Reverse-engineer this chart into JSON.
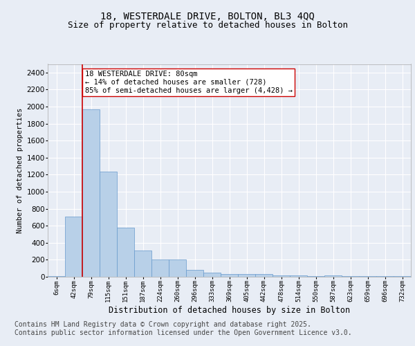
{
  "title_line1": "18, WESTERDALE DRIVE, BOLTON, BL3 4QQ",
  "title_line2": "Size of property relative to detached houses in Bolton",
  "xlabel": "Distribution of detached houses by size in Bolton",
  "ylabel": "Number of detached properties",
  "bin_labels": [
    "6sqm",
    "42sqm",
    "79sqm",
    "115sqm",
    "151sqm",
    "187sqm",
    "224sqm",
    "260sqm",
    "296sqm",
    "333sqm",
    "369sqm",
    "405sqm",
    "442sqm",
    "478sqm",
    "514sqm",
    "550sqm",
    "587sqm",
    "623sqm",
    "659sqm",
    "696sqm",
    "732sqm"
  ],
  "bar_values": [
    10,
    710,
    1970,
    1235,
    580,
    305,
    200,
    200,
    80,
    45,
    35,
    35,
    30,
    15,
    15,
    5,
    20,
    5,
    5,
    5,
    5
  ],
  "bar_color": "#b8d0e8",
  "bar_edge_color": "#6699cc",
  "red_line_x": 1.5,
  "red_line_color": "#cc0000",
  "annotation_text": "18 WESTERDALE DRIVE: 80sqm\n← 14% of detached houses are smaller (728)\n85% of semi-detached houses are larger (4,428) →",
  "annotation_box_color": "#ffffff",
  "annotation_box_edge": "#cc0000",
  "ylim": [
    0,
    2500
  ],
  "yticks": [
    0,
    200,
    400,
    600,
    800,
    1000,
    1200,
    1400,
    1600,
    1800,
    2000,
    2200,
    2400
  ],
  "bg_color": "#e8edf5",
  "plot_bg_color": "#e8edf5",
  "grid_color": "#ffffff",
  "footer_line1": "Contains HM Land Registry data © Crown copyright and database right 2025.",
  "footer_line2": "Contains public sector information licensed under the Open Government Licence v3.0.",
  "title_fontsize": 10,
  "subtitle_fontsize": 9,
  "footer_fontsize": 7,
  "annotation_fontsize": 7.5
}
